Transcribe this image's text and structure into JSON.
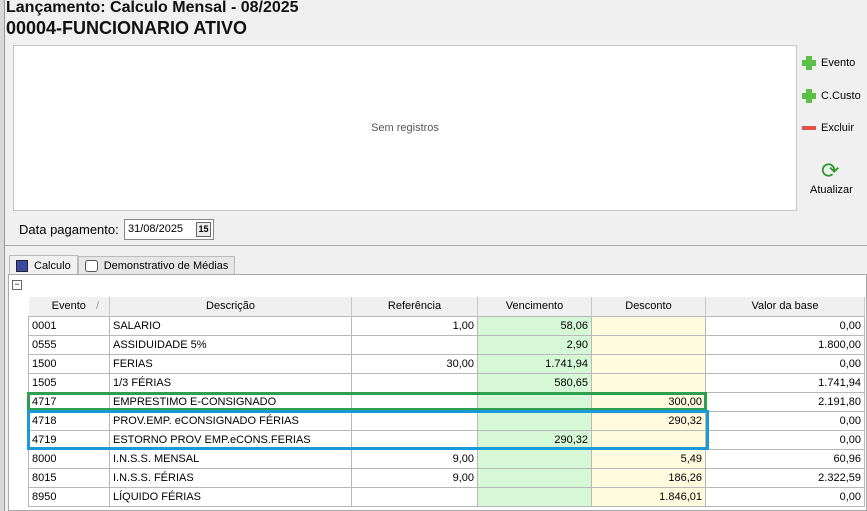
{
  "header": {
    "title": "Lançamento: Calculo Mensal - 08/2025",
    "employee": "00004-FUNCIONARIO ATIVO"
  },
  "panel": {
    "empty_text": "Sem registros"
  },
  "side_buttons": {
    "evento": "Evento",
    "ccusto": "C.Custo",
    "excluir": "Excluir",
    "atualizar": "Atualizar"
  },
  "date": {
    "label": "Data pagamento:",
    "value": "31/08/2025",
    "calendar_glyph": "15"
  },
  "tabs": [
    {
      "label": "Calculo"
    },
    {
      "label": "Demonstrativo de Médias"
    }
  ],
  "grid": {
    "collapse": "−",
    "sort_glyph": "/",
    "columns": [
      "Evento",
      "Descrição",
      "Referência",
      "Vencimento",
      "Desconto",
      "Valor da base"
    ],
    "rows": [
      [
        "0001",
        "SALARIO",
        "1,00",
        "58,06",
        "",
        "0,00"
      ],
      [
        "0555",
        "ASSIDUIDADE 5%",
        "",
        "2,90",
        "",
        "1.800,00"
      ],
      [
        "1500",
        "FERIAS",
        "30,00",
        "1.741,94",
        "",
        "0,00"
      ],
      [
        "1505",
        "1/3 FÉRIAS",
        "",
        "580,65",
        "",
        "1.741,94"
      ],
      [
        "4717",
        "EMPRESTIMO E-CONSIGNADO",
        "",
        "",
        "300,00",
        "2.191,80"
      ],
      [
        "4718",
        "PROV.EMP. eCONSIGNADO FÉRIAS",
        "",
        "",
        "290,32",
        "0,00"
      ],
      [
        "4719",
        "ESTORNO PROV EMP.eCONS.FERIAS",
        "",
        "290,32",
        "",
        "0,00"
      ],
      [
        "8000",
        "I.N.S.S. MENSAL",
        "9,00",
        "",
        "5,49",
        "60,96"
      ],
      [
        "8015",
        "I.N.S.S. FÉRIAS",
        "9,00",
        "",
        "186,26",
        "2.322,59"
      ],
      [
        "8950",
        "LÍQUIDO FÉRIAS",
        "",
        "",
        "1.846,01",
        "0,00"
      ]
    ]
  },
  "colors": {
    "vencimento_bg": "#d6f8d6",
    "desconto_bg": "#fffbdf",
    "highlight_green": "#2e9e4f",
    "highlight_blue": "#1a9ad6"
  }
}
